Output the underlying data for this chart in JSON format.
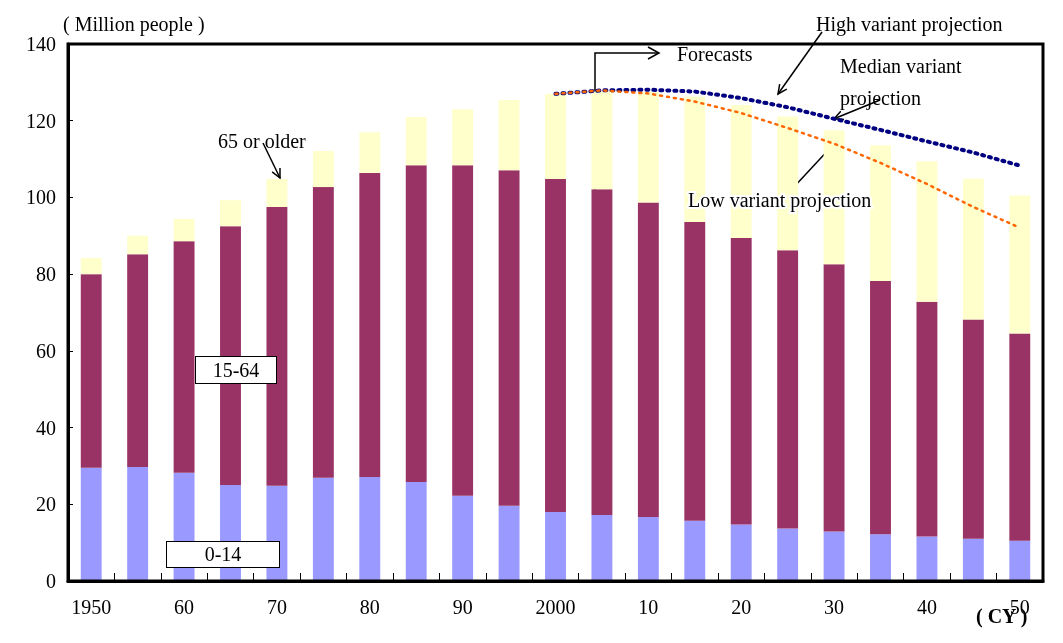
{
  "chart_data": {
    "type": "bar",
    "stacked": true,
    "ylabel": "( Million people )",
    "xlabel": "( CY )",
    "categories": [
      "1950",
      null,
      "60",
      null,
      "70",
      null,
      "80",
      null,
      "90",
      null,
      "2000",
      null,
      "10",
      null,
      "20",
      null,
      "30",
      null,
      "40",
      null,
      "50"
    ],
    "series": [
      {
        "name": "0-14",
        "color": "#9999ff",
        "values": [
          29.5,
          29.7,
          28.2,
          25.0,
          24.8,
          26.9,
          27.1,
          25.8,
          22.2,
          19.6,
          18.0,
          17.2,
          16.7,
          15.7,
          14.7,
          13.7,
          12.9,
          12.2,
          11.6,
          11.0,
          10.5
        ]
      },
      {
        "name": "15-64",
        "color": "#993366",
        "values": [
          50.5,
          55.5,
          60.4,
          67.5,
          72.7,
          75.8,
          79.3,
          82.6,
          86.2,
          87.5,
          86.8,
          84.9,
          82.0,
          77.9,
          74.7,
          72.5,
          69.7,
          66.0,
          61.2,
          57.2,
          54.0
        ]
      },
      {
        "name": "65 or older",
        "color": "#ffffcc",
        "values": [
          4.2,
          4.8,
          5.8,
          6.8,
          7.3,
          9.4,
          10.6,
          12.6,
          14.6,
          18.3,
          22.2,
          25.6,
          28.8,
          32.7,
          34.7,
          34.9,
          34.9,
          35.4,
          36.6,
          36.7,
          36.0
        ]
      },
      {
        "name": "High variant projection",
        "type": "line",
        "color": "#000080",
        "line_style": "dotted",
        "marker": "none",
        "values": [
          null,
          null,
          null,
          null,
          null,
          null,
          null,
          null,
          null,
          null,
          127,
          127.9,
          128.1,
          127.6,
          125.9,
          123.5,
          120.5,
          117.6,
          114.6,
          111.7,
          108.3
        ]
      },
      {
        "type": "line",
        "color": "#ff6600",
        "line_style": "dotted",
        "marker": "none",
        "values": [
          null,
          null,
          null,
          null,
          null,
          null,
          null,
          null,
          null,
          null,
          127,
          127.9,
          127.1,
          125.0,
          122.0,
          118.1,
          114,
          109,
          103.5,
          97.5,
          92.1
        ]
      }
    ],
    "ylim": [
      0,
      140
    ],
    "yticks": [
      0,
      20,
      40,
      60,
      80,
      100,
      120,
      140
    ],
    "grid": false,
    "legend": false,
    "annotations": [
      "Forecasts",
      {
        "text": "Median variant projection",
        "x": "30",
        "y": 120.5
      },
      {
        "text": "Low variant projection",
        "x": "30",
        "y": 114
      }
    ]
  }
}
